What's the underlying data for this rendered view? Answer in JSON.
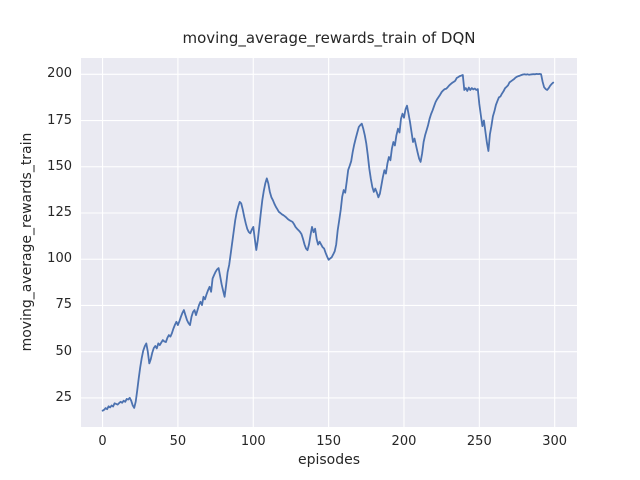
{
  "chart_data": {
    "type": "line",
    "title": "moving_average_rewards_train of DQN",
    "xlabel": "episodes",
    "ylabel": "moving_average_rewards_train",
    "x_ticks": [
      0,
      50,
      100,
      150,
      200,
      250,
      300
    ],
    "y_ticks": [
      25,
      50,
      75,
      100,
      125,
      150,
      175,
      200
    ],
    "xlim": [
      -14.3,
      314.8
    ],
    "ylim": [
      9.3,
      208.8
    ],
    "grid": true,
    "legend_position": "none",
    "colors": {
      "line": "#4C72B0",
      "axes_background": "#EAEAF2",
      "gridline": "#FFFFFF",
      "text": "#262626",
      "figure_background": "#FFFFFF"
    },
    "series": [
      {
        "name": "moving_average_rewards_train",
        "points": [
          [
            0,
            18.1
          ],
          [
            1,
            18.6
          ],
          [
            2,
            19.5
          ],
          [
            3,
            18.9
          ],
          [
            4,
            20.5
          ],
          [
            5,
            19.9
          ],
          [
            6,
            20.9
          ],
          [
            7,
            20.4
          ],
          [
            8,
            22.1
          ],
          [
            9,
            21.8
          ],
          [
            10,
            21.4
          ],
          [
            11,
            22.2
          ],
          [
            12,
            22.9
          ],
          [
            13,
            22.4
          ],
          [
            14,
            23.5
          ],
          [
            15,
            22.9
          ],
          [
            16,
            24.5
          ],
          [
            17,
            24.1
          ],
          [
            18,
            25.1
          ],
          [
            19,
            23.5
          ],
          [
            20,
            21.0
          ],
          [
            21,
            19.6
          ],
          [
            22,
            23.0
          ],
          [
            23,
            29.0
          ],
          [
            24,
            35.5
          ],
          [
            25,
            41.5
          ],
          [
            26,
            46.5
          ],
          [
            27,
            50.5
          ],
          [
            28,
            53.0
          ],
          [
            29,
            54.5
          ],
          [
            30,
            50.0
          ],
          [
            31,
            43.7
          ],
          [
            32,
            46.0
          ],
          [
            33,
            49.5
          ],
          [
            34,
            52.0
          ],
          [
            35,
            53.1
          ],
          [
            36,
            51.8
          ],
          [
            37,
            54.5
          ],
          [
            38,
            53.6
          ],
          [
            39,
            55.0
          ],
          [
            40,
            56.3
          ],
          [
            41,
            55.6
          ],
          [
            42,
            55.2
          ],
          [
            43,
            57.5
          ],
          [
            44,
            59.0
          ],
          [
            45,
            58.2
          ],
          [
            46,
            60.0
          ],
          [
            47,
            62.5
          ],
          [
            48,
            64.5
          ],
          [
            49,
            66.2
          ],
          [
            50,
            64.4
          ],
          [
            51,
            66.5
          ],
          [
            52,
            68.9
          ],
          [
            53,
            71.0
          ],
          [
            54,
            72.5
          ],
          [
            55,
            69.8
          ],
          [
            56,
            67.1
          ],
          [
            57,
            65.5
          ],
          [
            58,
            64.4
          ],
          [
            59,
            68.9
          ],
          [
            60,
            71.5
          ],
          [
            61,
            72.5
          ],
          [
            62,
            69.8
          ],
          [
            63,
            72.5
          ],
          [
            64,
            75.2
          ],
          [
            65,
            77.0
          ],
          [
            66,
            75.2
          ],
          [
            67,
            79.7
          ],
          [
            68,
            78.3
          ],
          [
            69,
            81.0
          ],
          [
            70,
            83.3
          ],
          [
            71,
            85.1
          ],
          [
            72,
            82.4
          ],
          [
            73,
            89.6
          ],
          [
            74,
            91.5
          ],
          [
            75,
            93.2
          ],
          [
            76,
            94.5
          ],
          [
            77,
            95.2
          ],
          [
            78,
            91.0
          ],
          [
            79,
            86.5
          ],
          [
            80,
            83.0
          ],
          [
            81,
            79.7
          ],
          [
            82,
            86.0
          ],
          [
            83,
            93.0
          ],
          [
            84,
            97.0
          ],
          [
            85,
            103.0
          ],
          [
            86,
            109.0
          ],
          [
            87,
            115.0
          ],
          [
            88,
            121.0
          ],
          [
            89,
            125.5
          ],
          [
            90,
            128.5
          ],
          [
            91,
            131.0
          ],
          [
            92,
            130.2
          ],
          [
            93,
            127.0
          ],
          [
            94,
            123.0
          ],
          [
            95,
            119.5
          ],
          [
            96,
            116.5
          ],
          [
            97,
            114.8
          ],
          [
            98,
            114.0
          ],
          [
            99,
            116.0
          ],
          [
            100,
            117.5
          ],
          [
            101,
            111.0
          ],
          [
            102,
            105.0
          ],
          [
            103,
            110.4
          ],
          [
            104,
            117.5
          ],
          [
            105,
            125.0
          ],
          [
            106,
            131.9
          ],
          [
            107,
            137.0
          ],
          [
            108,
            141.0
          ],
          [
            109,
            143.7
          ],
          [
            110,
            141.0
          ],
          [
            111,
            136.5
          ],
          [
            112,
            133.5
          ],
          [
            113,
            131.9
          ],
          [
            114,
            130.0
          ],
          [
            115,
            128.3
          ],
          [
            116,
            127.0
          ],
          [
            117,
            125.6
          ],
          [
            118,
            125.0
          ],
          [
            119,
            124.3
          ],
          [
            120,
            123.8
          ],
          [
            121,
            123.2
          ],
          [
            122,
            122.5
          ],
          [
            123,
            121.7
          ],
          [
            124,
            121.1
          ],
          [
            125,
            120.7
          ],
          [
            126,
            120.2
          ],
          [
            127,
            119.0
          ],
          [
            128,
            117.5
          ],
          [
            129,
            116.5
          ],
          [
            130,
            115.7
          ],
          [
            131,
            114.8
          ],
          [
            132,
            113.6
          ],
          [
            133,
            111.0
          ],
          [
            134,
            108.0
          ],
          [
            135,
            105.8
          ],
          [
            136,
            104.9
          ],
          [
            137,
            108.0
          ],
          [
            138,
            113.0
          ],
          [
            139,
            117.5
          ],
          [
            140,
            114.6
          ],
          [
            141,
            116.5
          ],
          [
            142,
            111.0
          ],
          [
            143,
            107.9
          ],
          [
            144,
            109.5
          ],
          [
            145,
            108.0
          ],
          [
            146,
            106.5
          ],
          [
            147,
            105.8
          ],
          [
            148,
            103.5
          ],
          [
            149,
            101.5
          ],
          [
            150,
            99.7
          ],
          [
            151,
            100.4
          ],
          [
            152,
            101.0
          ],
          [
            153,
            102.5
          ],
          [
            154,
            104.3
          ],
          [
            155,
            108.0
          ],
          [
            156,
            115.7
          ],
          [
            157,
            121.0
          ],
          [
            158,
            126.6
          ],
          [
            159,
            133.8
          ],
          [
            160,
            137.4
          ],
          [
            161,
            136.0
          ],
          [
            162,
            141.9
          ],
          [
            163,
            148.3
          ],
          [
            164,
            150.5
          ],
          [
            165,
            153.0
          ],
          [
            166,
            158.0
          ],
          [
            167,
            162.0
          ],
          [
            168,
            165.5
          ],
          [
            169,
            168.5
          ],
          [
            170,
            171.5
          ],
          [
            171,
            172.5
          ],
          [
            172,
            173.3
          ],
          [
            173,
            170.5
          ],
          [
            174,
            167.0
          ],
          [
            175,
            162.5
          ],
          [
            176,
            156.2
          ],
          [
            177,
            149.0
          ],
          [
            178,
            143.6
          ],
          [
            179,
            139.1
          ],
          [
            180,
            136.4
          ],
          [
            181,
            138.2
          ],
          [
            182,
            136.0
          ],
          [
            183,
            133.5
          ],
          [
            184,
            135.5
          ],
          [
            185,
            140.0
          ],
          [
            186,
            144.5
          ],
          [
            187,
            148.1
          ],
          [
            188,
            146.3
          ],
          [
            189,
            151.7
          ],
          [
            190,
            155.3
          ],
          [
            191,
            153.5
          ],
          [
            192,
            159.8
          ],
          [
            193,
            163.4
          ],
          [
            194,
            161.5
          ],
          [
            195,
            167.0
          ],
          [
            196,
            170.6
          ],
          [
            197,
            168.5
          ],
          [
            198,
            176.0
          ],
          [
            199,
            178.7
          ],
          [
            200,
            176.5
          ],
          [
            201,
            181.0
          ],
          [
            202,
            183.0
          ],
          [
            203,
            178.7
          ],
          [
            204,
            174.2
          ],
          [
            205,
            168.8
          ],
          [
            206,
            163.4
          ],
          [
            207,
            165.2
          ],
          [
            208,
            161.6
          ],
          [
            209,
            158.0
          ],
          [
            210,
            154.4
          ],
          [
            211,
            152.6
          ],
          [
            212,
            157.1
          ],
          [
            213,
            163.4
          ],
          [
            214,
            167.0
          ],
          [
            215,
            169.7
          ],
          [
            216,
            172.5
          ],
          [
            217,
            176.0
          ],
          [
            218,
            178.5
          ],
          [
            219,
            180.5
          ],
          [
            220,
            182.8
          ],
          [
            221,
            185.0
          ],
          [
            222,
            186.5
          ],
          [
            223,
            187.7
          ],
          [
            224,
            189.0
          ],
          [
            225,
            190.4
          ],
          [
            226,
            191.3
          ],
          [
            227,
            192.0
          ],
          [
            228,
            192.2
          ],
          [
            229,
            193.0
          ],
          [
            230,
            194.0
          ],
          [
            231,
            194.7
          ],
          [
            232,
            195.4
          ],
          [
            233,
            195.9
          ],
          [
            234,
            196.5
          ],
          [
            235,
            198.0
          ],
          [
            236,
            198.5
          ],
          [
            237,
            199.0
          ],
          [
            238,
            199.3
          ],
          [
            239,
            199.6
          ],
          [
            240,
            191.5
          ],
          [
            241,
            192.5
          ],
          [
            242,
            191.0
          ],
          [
            243,
            192.8
          ],
          [
            244,
            191.5
          ],
          [
            245,
            192.5
          ],
          [
            246,
            191.8
          ],
          [
            247,
            192.3
          ],
          [
            248,
            191.5
          ],
          [
            249,
            192.0
          ],
          [
            250,
            184.0
          ],
          [
            251,
            178.0
          ],
          [
            252,
            172.0
          ],
          [
            253,
            175.0
          ],
          [
            254,
            169.0
          ],
          [
            255,
            163.0
          ],
          [
            256,
            158.5
          ],
          [
            257,
            167.5
          ],
          [
            258,
            172.0
          ],
          [
            259,
            177.2
          ],
          [
            260,
            180.0
          ],
          [
            261,
            183.4
          ],
          [
            262,
            185.5
          ],
          [
            263,
            187.5
          ],
          [
            264,
            188.0
          ],
          [
            265,
            189.5
          ],
          [
            266,
            190.8
          ],
          [
            267,
            192.4
          ],
          [
            268,
            193.2
          ],
          [
            269,
            194.0
          ],
          [
            270,
            195.6
          ],
          [
            271,
            196.2
          ],
          [
            272,
            196.8
          ],
          [
            273,
            197.4
          ],
          [
            274,
            198.2
          ],
          [
            275,
            198.7
          ],
          [
            276,
            199.0
          ],
          [
            277,
            199.3
          ],
          [
            278,
            199.6
          ],
          [
            279,
            199.9
          ],
          [
            280,
            200.0
          ],
          [
            281,
            199.8
          ],
          [
            282,
            200.0
          ],
          [
            283,
            199.7
          ],
          [
            284,
            199.9
          ],
          [
            285,
            200.0
          ],
          [
            286,
            200.1
          ],
          [
            287,
            200.0
          ],
          [
            288,
            200.2
          ],
          [
            289,
            200.1
          ],
          [
            290,
            200.2
          ],
          [
            291,
            200.0
          ],
          [
            292,
            196.0
          ],
          [
            293,
            193.0
          ],
          [
            294,
            192.0
          ],
          [
            295,
            191.5
          ],
          [
            296,
            192.5
          ],
          [
            297,
            193.8
          ],
          [
            298,
            194.8
          ],
          [
            299,
            195.5
          ]
        ]
      }
    ]
  }
}
